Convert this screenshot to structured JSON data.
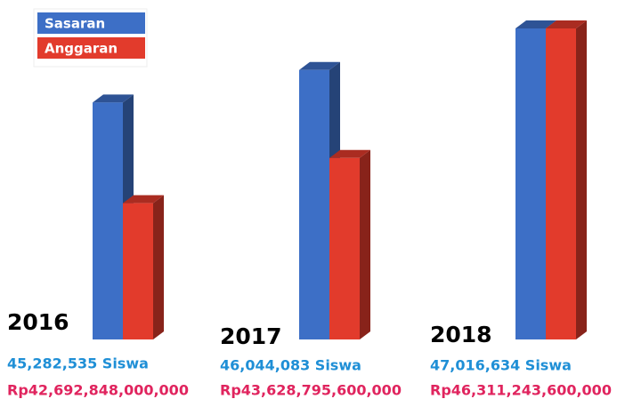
{
  "chart_data": {
    "type": "bar3d",
    "categories": [
      "2016",
      "2017",
      "2018"
    ],
    "series": [
      {
        "name": "Sasaran",
        "color": "#3d6fc6",
        "label_color": "#1f8fd6",
        "values": [
          45282535,
          46044083,
          47016634
        ],
        "value_labels": [
          "45,282,535 Siswa",
          "46,044,083 Siswa",
          "47,016,634 Siswa"
        ]
      },
      {
        "name": "Anggaran",
        "color": "#e23b2c",
        "label_color": "#e0245e",
        "values": [
          42692848000000,
          43628795600000,
          46311243600000
        ],
        "value_labels": [
          "Rp42,692,848,000,000",
          "Rp43,628,795,600,000",
          "Rp46,311,243,600,000"
        ]
      }
    ]
  }
}
